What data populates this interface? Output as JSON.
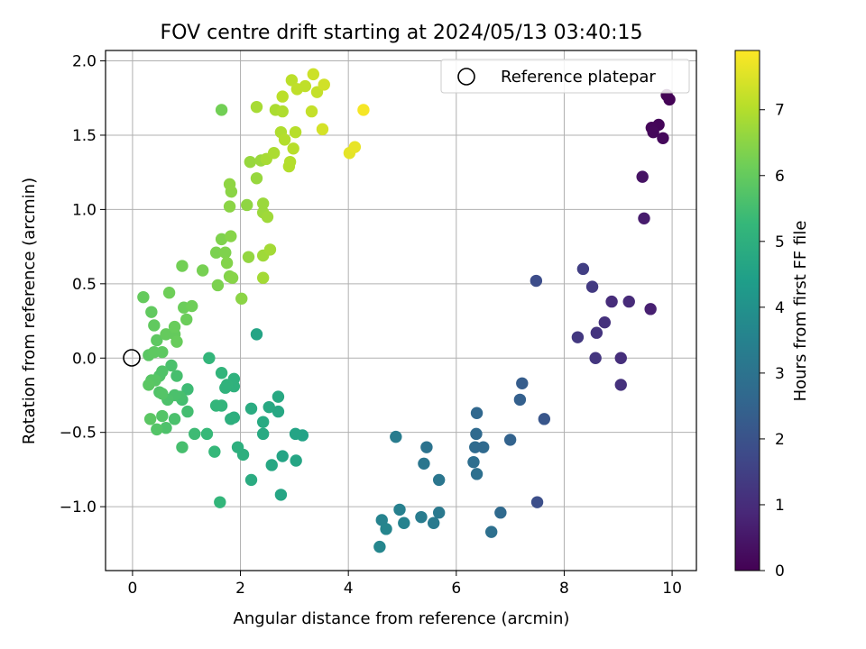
{
  "chart_data": {
    "type": "scatter",
    "title": "FOV centre drift starting at 2024/05/13 03:40:15",
    "xlabel": "Angular distance from reference (arcmin)",
    "ylabel": "Rotation from reference (arcmin)",
    "xlim": [
      -0.5,
      10.45
    ],
    "ylim": [
      -1.43,
      2.07
    ],
    "xticks": [
      0,
      2,
      4,
      6,
      8,
      10
    ],
    "xtick_labels": [
      "0",
      "2",
      "4",
      "6",
      "8",
      "10"
    ],
    "yticks": [
      -1.0,
      -0.5,
      0.0,
      0.5,
      1.0,
      1.5,
      2.0
    ],
    "ytick_labels": [
      "−1.0",
      "−0.5",
      "0.0",
      "0.5",
      "1.0",
      "1.5",
      "2.0"
    ],
    "grid": true,
    "legend": {
      "position": "top-right",
      "entries": [
        "Reference platepar"
      ]
    },
    "reference_point": {
      "x": 0,
      "y": 0,
      "label": "Reference platepar"
    },
    "colorbar": {
      "label": "Hours from first FF file",
      "range": [
        0,
        7.9
      ],
      "ticks": [
        0,
        1,
        2,
        3,
        4,
        5,
        6,
        7
      ],
      "tick_labels": [
        "0",
        "1",
        "2",
        "3",
        "4",
        "5",
        "6",
        "7"
      ],
      "colormap": [
        "#440154",
        "#482878",
        "#3e4a89",
        "#31688e",
        "#26828e",
        "#1f9e89",
        "#35b779",
        "#6ece58",
        "#b5de2b",
        "#fde725"
      ]
    },
    "points": [
      {
        "x": 9.9,
        "y": 1.77,
        "h": 0.02
      },
      {
        "x": 9.95,
        "y": 1.74,
        "h": 0.05
      },
      {
        "x": 9.75,
        "y": 1.57,
        "h": 0.1
      },
      {
        "x": 9.62,
        "y": 1.55,
        "h": 0.12
      },
      {
        "x": 9.65,
        "y": 1.52,
        "h": 0.15
      },
      {
        "x": 9.83,
        "y": 1.48,
        "h": 0.18
      },
      {
        "x": 9.45,
        "y": 1.22,
        "h": 0.4
      },
      {
        "x": 9.48,
        "y": 0.94,
        "h": 0.6
      },
      {
        "x": 9.6,
        "y": 0.33,
        "h": 0.7
      },
      {
        "x": 9.2,
        "y": 0.38,
        "h": 0.95
      },
      {
        "x": 8.88,
        "y": 0.38,
        "h": 1.0
      },
      {
        "x": 8.75,
        "y": 0.24,
        "h": 1.1
      },
      {
        "x": 9.05,
        "y": 0.0,
        "h": 1.05
      },
      {
        "x": 9.05,
        "y": -0.18,
        "h": 1.1
      },
      {
        "x": 8.6,
        "y": 0.17,
        "h": 1.2
      },
      {
        "x": 8.58,
        "y": 0.0,
        "h": 1.25
      },
      {
        "x": 8.25,
        "y": 0.14,
        "h": 1.3
      },
      {
        "x": 8.52,
        "y": 0.48,
        "h": 1.35
      },
      {
        "x": 8.35,
        "y": 0.6,
        "h": 1.45
      },
      {
        "x": 7.48,
        "y": 0.52,
        "h": 1.85
      },
      {
        "x": 7.5,
        "y": -0.97,
        "h": 1.9
      },
      {
        "x": 7.63,
        "y": -0.41,
        "h": 2.1
      },
      {
        "x": 7.22,
        "y": -0.17,
        "h": 2.3
      },
      {
        "x": 7.18,
        "y": -0.28,
        "h": 2.4
      },
      {
        "x": 7.0,
        "y": -0.55,
        "h": 2.5
      },
      {
        "x": 6.82,
        "y": -1.04,
        "h": 2.7
      },
      {
        "x": 6.65,
        "y": -1.17,
        "h": 2.9
      },
      {
        "x": 6.38,
        "y": -0.37,
        "h": 2.65
      },
      {
        "x": 6.37,
        "y": -0.51,
        "h": 2.7
      },
      {
        "x": 6.35,
        "y": -0.6,
        "h": 2.75
      },
      {
        "x": 6.5,
        "y": -0.6,
        "h": 2.7
      },
      {
        "x": 6.32,
        "y": -0.7,
        "h": 2.85
      },
      {
        "x": 6.38,
        "y": -0.78,
        "h": 2.9
      },
      {
        "x": 5.68,
        "y": -0.82,
        "h": 3.1
      },
      {
        "x": 5.68,
        "y": -1.04,
        "h": 3.2
      },
      {
        "x": 5.45,
        "y": -0.6,
        "h": 3.0
      },
      {
        "x": 5.4,
        "y": -0.71,
        "h": 3.1
      },
      {
        "x": 5.58,
        "y": -1.11,
        "h": 3.25
      },
      {
        "x": 5.35,
        "y": -1.07,
        "h": 3.3
      },
      {
        "x": 4.88,
        "y": -0.53,
        "h": 3.3
      },
      {
        "x": 4.95,
        "y": -1.02,
        "h": 3.45
      },
      {
        "x": 5.03,
        "y": -1.11,
        "h": 3.5
      },
      {
        "x": 4.62,
        "y": -1.09,
        "h": 3.55
      },
      {
        "x": 4.7,
        "y": -1.15,
        "h": 3.6
      },
      {
        "x": 4.58,
        "y": -1.27,
        "h": 3.65
      },
      {
        "x": 2.3,
        "y": 0.16,
        "h": 4.6
      },
      {
        "x": 3.15,
        "y": -0.52,
        "h": 4.55
      },
      {
        "x": 3.02,
        "y": -0.51,
        "h": 4.6
      },
      {
        "x": 3.03,
        "y": -0.69,
        "h": 4.65
      },
      {
        "x": 2.78,
        "y": -0.66,
        "h": 4.6
      },
      {
        "x": 2.75,
        "y": -0.92,
        "h": 4.65
      },
      {
        "x": 2.7,
        "y": -0.36,
        "h": 4.7
      },
      {
        "x": 2.7,
        "y": -0.26,
        "h": 4.75
      },
      {
        "x": 2.53,
        "y": -0.33,
        "h": 4.75
      },
      {
        "x": 2.58,
        "y": -0.72,
        "h": 4.7
      },
      {
        "x": 2.42,
        "y": -0.43,
        "h": 4.8
      },
      {
        "x": 2.42,
        "y": -0.51,
        "h": 4.8
      },
      {
        "x": 2.2,
        "y": -0.82,
        "h": 4.85
      },
      {
        "x": 2.2,
        "y": -0.34,
        "h": 4.85
      },
      {
        "x": 2.05,
        "y": -0.65,
        "h": 5.0
      },
      {
        "x": 1.95,
        "y": -0.6,
        "h": 5.0
      },
      {
        "x": 1.88,
        "y": -0.4,
        "h": 4.95
      },
      {
        "x": 1.82,
        "y": -0.41,
        "h": 5.0
      },
      {
        "x": 1.88,
        "y": -0.14,
        "h": 5.05
      },
      {
        "x": 1.88,
        "y": -0.19,
        "h": 5.05
      },
      {
        "x": 1.75,
        "y": -0.18,
        "h": 5.1
      },
      {
        "x": 1.72,
        "y": -0.2,
        "h": 5.1
      },
      {
        "x": 1.65,
        "y": -0.1,
        "h": 5.15
      },
      {
        "x": 1.65,
        "y": -0.32,
        "h": 5.15
      },
      {
        "x": 1.55,
        "y": -0.32,
        "h": 5.2
      },
      {
        "x": 1.62,
        "y": -0.97,
        "h": 5.2
      },
      {
        "x": 1.52,
        "y": -0.63,
        "h": 5.25
      },
      {
        "x": 1.42,
        "y": 0.0,
        "h": 5.2
      },
      {
        "x": 1.38,
        "y": -0.51,
        "h": 5.3
      },
      {
        "x": 1.15,
        "y": -0.51,
        "h": 5.4
      },
      {
        "x": 1.02,
        "y": -0.21,
        "h": 5.4
      },
      {
        "x": 1.02,
        "y": -0.36,
        "h": 5.5
      },
      {
        "x": 0.92,
        "y": -0.28,
        "h": 5.5
      },
      {
        "x": 0.88,
        "y": -0.26,
        "h": 5.55
      },
      {
        "x": 0.92,
        "y": -0.6,
        "h": 5.55
      },
      {
        "x": 0.82,
        "y": -0.12,
        "h": 5.55
      },
      {
        "x": 0.78,
        "y": -0.25,
        "h": 5.6
      },
      {
        "x": 0.78,
        "y": -0.41,
        "h": 5.6
      },
      {
        "x": 0.72,
        "y": -0.05,
        "h": 5.6
      },
      {
        "x": 0.65,
        "y": -0.28,
        "h": 5.65
      },
      {
        "x": 0.62,
        "y": -0.47,
        "h": 5.65
      },
      {
        "x": 0.55,
        "y": -0.09,
        "h": 5.7
      },
      {
        "x": 0.5,
        "y": -0.12,
        "h": 5.7
      },
      {
        "x": 0.5,
        "y": -0.23,
        "h": 5.7
      },
      {
        "x": 0.55,
        "y": -0.24,
        "h": 5.75
      },
      {
        "x": 0.55,
        "y": -0.39,
        "h": 5.75
      },
      {
        "x": 0.45,
        "y": -0.48,
        "h": 5.75
      },
      {
        "x": 0.42,
        "y": -0.15,
        "h": 5.8
      },
      {
        "x": 0.35,
        "y": -0.15,
        "h": 5.8
      },
      {
        "x": 0.3,
        "y": -0.18,
        "h": 5.85
      },
      {
        "x": 0.33,
        "y": -0.41,
        "h": 5.85
      },
      {
        "x": 0.3,
        "y": 0.02,
        "h": 5.85
      },
      {
        "x": 0.4,
        "y": 0.04,
        "h": 5.9
      },
      {
        "x": 0.45,
        "y": 0.12,
        "h": 5.9
      },
      {
        "x": 0.55,
        "y": 0.04,
        "h": 5.9
      },
      {
        "x": 0.4,
        "y": 0.22,
        "h": 5.95
      },
      {
        "x": 0.35,
        "y": 0.31,
        "h": 5.95
      },
      {
        "x": 0.2,
        "y": 0.41,
        "h": 6.0
      },
      {
        "x": 0.62,
        "y": 0.16,
        "h": 6.0
      },
      {
        "x": 0.78,
        "y": 0.16,
        "h": 6.0
      },
      {
        "x": 0.78,
        "y": 0.21,
        "h": 6.05
      },
      {
        "x": 0.82,
        "y": 0.11,
        "h": 6.05
      },
      {
        "x": 1.0,
        "y": 0.26,
        "h": 6.1
      },
      {
        "x": 0.95,
        "y": 0.34,
        "h": 6.1
      },
      {
        "x": 1.1,
        "y": 0.35,
        "h": 6.15
      },
      {
        "x": 0.68,
        "y": 0.44,
        "h": 6.15
      },
      {
        "x": 0.92,
        "y": 0.62,
        "h": 6.2
      },
      {
        "x": 1.65,
        "y": 1.67,
        "h": 6.2
      },
      {
        "x": 1.3,
        "y": 0.59,
        "h": 6.25
      },
      {
        "x": 1.58,
        "y": 0.49,
        "h": 6.3
      },
      {
        "x": 1.55,
        "y": 0.71,
        "h": 6.3
      },
      {
        "x": 1.65,
        "y": 0.8,
        "h": 6.35
      },
      {
        "x": 1.72,
        "y": 0.71,
        "h": 6.35
      },
      {
        "x": 1.75,
        "y": 0.64,
        "h": 6.4
      },
      {
        "x": 1.8,
        "y": 0.55,
        "h": 6.4
      },
      {
        "x": 1.85,
        "y": 0.54,
        "h": 6.45
      },
      {
        "x": 1.82,
        "y": 0.82,
        "h": 6.45
      },
      {
        "x": 1.8,
        "y": 1.02,
        "h": 6.5
      },
      {
        "x": 1.83,
        "y": 1.12,
        "h": 6.5
      },
      {
        "x": 1.8,
        "y": 1.17,
        "h": 6.55
      },
      {
        "x": 2.02,
        "y": 0.4,
        "h": 6.5
      },
      {
        "x": 2.12,
        "y": 1.03,
        "h": 6.55
      },
      {
        "x": 2.15,
        "y": 0.68,
        "h": 6.6
      },
      {
        "x": 2.18,
        "y": 1.32,
        "h": 6.65
      },
      {
        "x": 2.3,
        "y": 1.21,
        "h": 6.65
      },
      {
        "x": 2.38,
        "y": 1.33,
        "h": 6.7
      },
      {
        "x": 2.42,
        "y": 1.04,
        "h": 6.7
      },
      {
        "x": 2.42,
        "y": 0.98,
        "h": 6.7
      },
      {
        "x": 2.5,
        "y": 0.95,
        "h": 6.75
      },
      {
        "x": 2.42,
        "y": 0.69,
        "h": 6.75
      },
      {
        "x": 2.42,
        "y": 0.54,
        "h": 6.8
      },
      {
        "x": 2.55,
        "y": 0.73,
        "h": 6.8
      },
      {
        "x": 2.3,
        "y": 1.69,
        "h": 6.85
      },
      {
        "x": 2.48,
        "y": 1.34,
        "h": 6.85
      },
      {
        "x": 2.62,
        "y": 1.38,
        "h": 6.9
      },
      {
        "x": 2.65,
        "y": 1.67,
        "h": 6.9
      },
      {
        "x": 2.78,
        "y": 1.66,
        "h": 6.95
      },
      {
        "x": 2.75,
        "y": 1.52,
        "h": 6.95
      },
      {
        "x": 2.82,
        "y": 1.47,
        "h": 7.0
      },
      {
        "x": 2.9,
        "y": 1.29,
        "h": 7.0
      },
      {
        "x": 2.92,
        "y": 1.32,
        "h": 7.0
      },
      {
        "x": 2.98,
        "y": 1.41,
        "h": 7.05
      },
      {
        "x": 3.02,
        "y": 1.52,
        "h": 7.05
      },
      {
        "x": 2.78,
        "y": 1.76,
        "h": 7.1
      },
      {
        "x": 2.95,
        "y": 1.87,
        "h": 7.1
      },
      {
        "x": 3.05,
        "y": 1.81,
        "h": 7.15
      },
      {
        "x": 3.2,
        "y": 1.83,
        "h": 7.15
      },
      {
        "x": 3.32,
        "y": 1.66,
        "h": 7.2
      },
      {
        "x": 3.42,
        "y": 1.79,
        "h": 7.2
      },
      {
        "x": 3.35,
        "y": 1.91,
        "h": 7.3
      },
      {
        "x": 3.55,
        "y": 1.84,
        "h": 7.35
      },
      {
        "x": 3.52,
        "y": 1.54,
        "h": 7.4
      },
      {
        "x": 4.02,
        "y": 1.38,
        "h": 7.6
      },
      {
        "x": 4.12,
        "y": 1.42,
        "h": 7.65
      },
      {
        "x": 4.28,
        "y": 1.67,
        "h": 7.8
      }
    ]
  }
}
